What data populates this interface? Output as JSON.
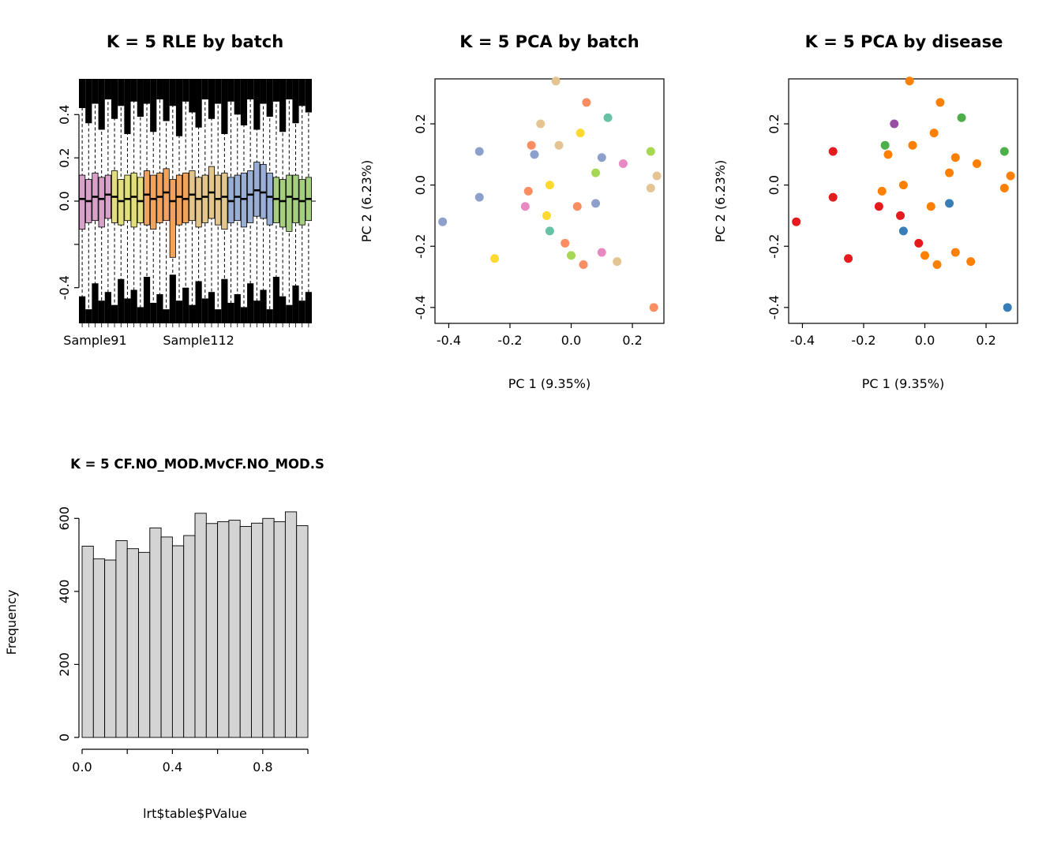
{
  "figure": {
    "background": "#ffffff",
    "text_color": "#000000"
  },
  "chart_data": [
    {
      "type": "boxplot",
      "title": "K = 5 RLE by batch",
      "xlabel": "",
      "ylabel": "",
      "ylim": [
        -0.565,
        0.565
      ],
      "y_ticks": [
        -0.4,
        -0.2,
        0.0,
        0.2,
        0.4
      ],
      "y_tick_labels": [
        "-0.4",
        "",
        "0.0",
        "0.2",
        "0.4"
      ],
      "h_line": 0,
      "whisker_style": "dashed",
      "outlier_color": "#000000",
      "x_axis_sample_labels": [
        {
          "label": "Sample91",
          "box_index": 2
        },
        {
          "label": "Sample112",
          "box_index": 18
        }
      ],
      "boxes": [
        {
          "m": 0.01,
          "q1": -0.13,
          "q3": 0.12,
          "lo": -0.5,
          "hi": 0.5,
          "ct": 0.43,
          "cb": -0.44,
          "c": "#D7A1C9"
        },
        {
          "m": 0.0,
          "q1": -0.1,
          "q3": 0.1,
          "lo": -0.52,
          "hi": 0.49,
          "ct": 0.36,
          "cb": -0.5,
          "c": "#D7A1C9"
        },
        {
          "m": 0.02,
          "q1": -0.09,
          "q3": 0.13,
          "lo": -0.49,
          "hi": 0.52,
          "ct": 0.45,
          "cb": -0.38,
          "c": "#D7A1C9"
        },
        {
          "m": 0.01,
          "q1": -0.12,
          "q3": 0.11,
          "lo": -0.51,
          "hi": 0.5,
          "ct": 0.33,
          "cb": -0.46,
          "c": "#D7A1C9"
        },
        {
          "m": 0.03,
          "q1": -0.08,
          "q3": 0.12,
          "lo": -0.5,
          "hi": 0.51,
          "ct": 0.47,
          "cb": -0.42,
          "c": "#D7A1C9"
        },
        {
          "m": 0.02,
          "q1": -0.1,
          "q3": 0.14,
          "lo": -0.52,
          "hi": 0.5,
          "ct": 0.38,
          "cb": -0.48,
          "c": "#E3DE7C"
        },
        {
          "m": 0.0,
          "q1": -0.11,
          "q3": 0.1,
          "lo": -0.5,
          "hi": 0.52,
          "ct": 0.44,
          "cb": -0.36,
          "c": "#E3DE7C"
        },
        {
          "m": 0.01,
          "q1": -0.09,
          "q3": 0.12,
          "lo": -0.51,
          "hi": 0.49,
          "ct": 0.31,
          "cb": -0.45,
          "c": "#E3DE7C"
        },
        {
          "m": 0.02,
          "q1": -0.12,
          "q3": 0.13,
          "lo": -0.49,
          "hi": 0.51,
          "ct": 0.46,
          "cb": -0.41,
          "c": "#E3DE7C"
        },
        {
          "m": 0.0,
          "q1": -0.1,
          "q3": 0.11,
          "lo": -0.52,
          "hi": 0.5,
          "ct": 0.39,
          "cb": -0.49,
          "c": "#E3DE7C"
        },
        {
          "m": 0.03,
          "q1": -0.11,
          "q3": 0.14,
          "lo": -0.5,
          "hi": 0.52,
          "ct": 0.45,
          "cb": -0.35,
          "c": "#EFA35C"
        },
        {
          "m": 0.01,
          "q1": -0.13,
          "q3": 0.12,
          "lo": -0.51,
          "hi": 0.5,
          "ct": 0.32,
          "cb": -0.47,
          "c": "#EFA35C"
        },
        {
          "m": 0.02,
          "q1": -0.1,
          "q3": 0.13,
          "lo": -0.49,
          "hi": 0.51,
          "ct": 0.47,
          "cb": -0.43,
          "c": "#EFA35C"
        },
        {
          "m": 0.04,
          "q1": -0.09,
          "q3": 0.15,
          "lo": -0.52,
          "hi": 0.52,
          "ct": 0.37,
          "cb": -0.5,
          "c": "#EFA35C"
        },
        {
          "m": 0.0,
          "q1": -0.26,
          "q3": 0.1,
          "lo": -0.51,
          "hi": 0.49,
          "ct": 0.44,
          "cb": -0.34,
          "c": "#EFA35C"
        },
        {
          "m": 0.02,
          "q1": -0.11,
          "q3": 0.12,
          "lo": -0.5,
          "hi": 0.51,
          "ct": 0.3,
          "cb": -0.46,
          "c": "#EFA35C"
        },
        {
          "m": 0.01,
          "q1": -0.1,
          "q3": 0.13,
          "lo": -0.52,
          "hi": 0.5,
          "ct": 0.46,
          "cb": -0.4,
          "c": "#EFA35C"
        },
        {
          "m": 0.03,
          "q1": -0.09,
          "q3": 0.14,
          "lo": -0.49,
          "hi": 0.52,
          "ct": 0.41,
          "cb": -0.48,
          "c": "#E2C68C"
        },
        {
          "m": 0.01,
          "q1": -0.12,
          "q3": 0.11,
          "lo": -0.51,
          "hi": 0.5,
          "ct": 0.34,
          "cb": -0.37,
          "c": "#E2C68C"
        },
        {
          "m": 0.02,
          "q1": -0.1,
          "q3": 0.12,
          "lo": -0.5,
          "hi": 0.51,
          "ct": 0.47,
          "cb": -0.45,
          "c": "#E2C68C"
        },
        {
          "m": 0.04,
          "q1": -0.08,
          "q3": 0.16,
          "lo": -0.52,
          "hi": 0.52,
          "ct": 0.38,
          "cb": -0.42,
          "c": "#E2C68C"
        },
        {
          "m": 0.01,
          "q1": -0.11,
          "q3": 0.12,
          "lo": -0.49,
          "hi": 0.5,
          "ct": 0.45,
          "cb": -0.5,
          "c": "#E2C68C"
        },
        {
          "m": 0.02,
          "q1": -0.13,
          "q3": 0.13,
          "lo": -0.51,
          "hi": 0.51,
          "ct": 0.31,
          "cb": -0.36,
          "c": "#E2C68C"
        },
        {
          "m": 0.0,
          "q1": -0.1,
          "q3": 0.11,
          "lo": -0.5,
          "hi": 0.49,
          "ct": 0.46,
          "cb": -0.47,
          "c": "#98AED6"
        },
        {
          "m": 0.02,
          "q1": -0.09,
          "q3": 0.12,
          "lo": -0.52,
          "hi": 0.52,
          "ct": 0.4,
          "cb": -0.43,
          "c": "#98AED6"
        },
        {
          "m": 0.01,
          "q1": -0.12,
          "q3": 0.13,
          "lo": -0.5,
          "hi": 0.5,
          "ct": 0.35,
          "cb": -0.49,
          "c": "#98AED6"
        },
        {
          "m": 0.03,
          "q1": -0.1,
          "q3": 0.14,
          "lo": -0.51,
          "hi": 0.51,
          "ct": 0.47,
          "cb": -0.38,
          "c": "#98AED6"
        },
        {
          "m": 0.05,
          "q1": -0.07,
          "q3": 0.18,
          "lo": -0.49,
          "hi": 0.52,
          "ct": 0.33,
          "cb": -0.46,
          "c": "#98AED6"
        },
        {
          "m": 0.04,
          "q1": -0.08,
          "q3": 0.17,
          "lo": -0.52,
          "hi": 0.5,
          "ct": 0.45,
          "cb": -0.41,
          "c": "#98AED6"
        },
        {
          "m": 0.02,
          "q1": -0.11,
          "q3": 0.13,
          "lo": -0.5,
          "hi": 0.51,
          "ct": 0.39,
          "cb": -0.5,
          "c": "#98AED6"
        },
        {
          "m": 0.01,
          "q1": -0.1,
          "q3": 0.11,
          "lo": -0.51,
          "hi": 0.49,
          "ct": 0.46,
          "cb": -0.35,
          "c": "#A5CE80"
        },
        {
          "m": 0.0,
          "q1": -0.12,
          "q3": 0.1,
          "lo": -0.49,
          "hi": 0.52,
          "ct": 0.32,
          "cb": -0.44,
          "c": "#A5CE80"
        },
        {
          "m": 0.02,
          "q1": -0.14,
          "q3": 0.12,
          "lo": -0.52,
          "hi": 0.5,
          "ct": 0.47,
          "cb": -0.48,
          "c": "#A5CE80"
        },
        {
          "m": 0.01,
          "q1": -0.1,
          "q3": 0.12,
          "lo": -0.5,
          "hi": 0.51,
          "ct": 0.36,
          "cb": -0.39,
          "c": "#A5CE80"
        },
        {
          "m": 0.0,
          "q1": -0.11,
          "q3": 0.1,
          "lo": -0.51,
          "hi": 0.5,
          "ct": 0.44,
          "cb": -0.46,
          "c": "#A5CE80"
        },
        {
          "m": 0.01,
          "q1": -0.09,
          "q3": 0.11,
          "lo": -0.5,
          "hi": 0.52,
          "ct": 0.41,
          "cb": -0.42,
          "c": "#A5CE80"
        }
      ]
    },
    {
      "type": "scatter",
      "title": "K = 5 PCA by batch",
      "xlabel": "PC 1 (9.35%)",
      "ylabel": "PC 2 (6.23%)",
      "xlim": [
        -0.445,
        0.303
      ],
      "ylim": [
        -0.452,
        0.347
      ],
      "x_ticks": [
        -0.4,
        -0.2,
        0.0,
        0.2
      ],
      "x_tick_labels": [
        "-0.4",
        "-0.2",
        "0.0",
        "0.2"
      ],
      "y_ticks": [
        -0.4,
        -0.2,
        0.0,
        0.2
      ],
      "y_tick_labels": [
        "-0.4",
        "-0.2",
        "0.0",
        "0.2"
      ],
      "point_radius": 5.5,
      "points": [
        {
          "x": -0.05,
          "y": 0.34,
          "color": "#E5C494"
        },
        {
          "x": 0.05,
          "y": 0.27,
          "color": "#FC8D62"
        },
        {
          "x": 0.12,
          "y": 0.22,
          "color": "#66C2A5"
        },
        {
          "x": -0.1,
          "y": 0.2,
          "color": "#E5C494"
        },
        {
          "x": -0.3,
          "y": 0.11,
          "color": "#8DA0CB"
        },
        {
          "x": -0.13,
          "y": 0.13,
          "color": "#FC8D62"
        },
        {
          "x": -0.12,
          "y": 0.1,
          "color": "#8DA0CB"
        },
        {
          "x": -0.04,
          "y": 0.13,
          "color": "#E5C494"
        },
        {
          "x": 0.03,
          "y": 0.17,
          "color": "#FFD92F"
        },
        {
          "x": 0.1,
          "y": 0.09,
          "color": "#8DA0CB"
        },
        {
          "x": 0.17,
          "y": 0.07,
          "color": "#E78AC3"
        },
        {
          "x": 0.26,
          "y": 0.11,
          "color": "#A6D854"
        },
        {
          "x": 0.08,
          "y": 0.04,
          "color": "#A6D854"
        },
        {
          "x": 0.28,
          "y": 0.03,
          "color": "#E5C494"
        },
        {
          "x": 0.26,
          "y": -0.01,
          "color": "#E5C494"
        },
        {
          "x": -0.14,
          "y": -0.02,
          "color": "#FC8D62"
        },
        {
          "x": -0.07,
          "y": 0.0,
          "color": "#FFD92F"
        },
        {
          "x": -0.3,
          "y": -0.04,
          "color": "#8DA0CB"
        },
        {
          "x": -0.15,
          "y": -0.07,
          "color": "#E78AC3"
        },
        {
          "x": -0.08,
          "y": -0.1,
          "color": "#FFD92F"
        },
        {
          "x": 0.02,
          "y": -0.07,
          "color": "#FC8D62"
        },
        {
          "x": 0.08,
          "y": -0.06,
          "color": "#8DA0CB"
        },
        {
          "x": -0.42,
          "y": -0.12,
          "color": "#8DA0CB"
        },
        {
          "x": -0.07,
          "y": -0.15,
          "color": "#66C2A5"
        },
        {
          "x": -0.02,
          "y": -0.19,
          "color": "#FC8D62"
        },
        {
          "x": 0.0,
          "y": -0.23,
          "color": "#A6D854"
        },
        {
          "x": 0.1,
          "y": -0.22,
          "color": "#E78AC3"
        },
        {
          "x": -0.25,
          "y": -0.24,
          "color": "#FFD92F"
        },
        {
          "x": 0.04,
          "y": -0.26,
          "color": "#FC8D62"
        },
        {
          "x": 0.15,
          "y": -0.25,
          "color": "#E5C494"
        },
        {
          "x": 0.27,
          "y": -0.4,
          "color": "#FC8D62"
        }
      ]
    },
    {
      "type": "scatter",
      "title": "K = 5 PCA by disease",
      "xlabel": "PC 1 (9.35%)",
      "ylabel": "PC 2 (6.23%)",
      "xlim": [
        -0.445,
        0.303
      ],
      "ylim": [
        -0.452,
        0.347
      ],
      "x_ticks": [
        -0.4,
        -0.2,
        0.0,
        0.2
      ],
      "x_tick_labels": [
        "-0.4",
        "-0.2",
        "0.0",
        "0.2"
      ],
      "y_ticks": [
        -0.4,
        -0.2,
        0.0,
        0.2
      ],
      "y_tick_labels": [
        "-0.4",
        "-0.2",
        "0.0",
        "0.2"
      ],
      "point_radius": 5.5,
      "points": [
        {
          "x": -0.05,
          "y": 0.34,
          "color": "#FF7F00"
        },
        {
          "x": 0.05,
          "y": 0.27,
          "color": "#FF7F00"
        },
        {
          "x": 0.12,
          "y": 0.22,
          "color": "#4DAF4A"
        },
        {
          "x": -0.1,
          "y": 0.2,
          "color": "#984EA3"
        },
        {
          "x": -0.3,
          "y": 0.11,
          "color": "#E41A1C"
        },
        {
          "x": -0.13,
          "y": 0.13,
          "color": "#4DAF4A"
        },
        {
          "x": -0.12,
          "y": 0.1,
          "color": "#FF7F00"
        },
        {
          "x": -0.04,
          "y": 0.13,
          "color": "#FF7F00"
        },
        {
          "x": 0.03,
          "y": 0.17,
          "color": "#FF7F00"
        },
        {
          "x": 0.1,
          "y": 0.09,
          "color": "#FF7F00"
        },
        {
          "x": 0.17,
          "y": 0.07,
          "color": "#FF7F00"
        },
        {
          "x": 0.26,
          "y": 0.11,
          "color": "#4DAF4A"
        },
        {
          "x": 0.08,
          "y": 0.04,
          "color": "#FF7F00"
        },
        {
          "x": 0.28,
          "y": 0.03,
          "color": "#FF7F00"
        },
        {
          "x": 0.26,
          "y": -0.01,
          "color": "#FF7F00"
        },
        {
          "x": -0.14,
          "y": -0.02,
          "color": "#FF7F00"
        },
        {
          "x": -0.07,
          "y": 0.0,
          "color": "#FF7F00"
        },
        {
          "x": -0.3,
          "y": -0.04,
          "color": "#E41A1C"
        },
        {
          "x": -0.15,
          "y": -0.07,
          "color": "#E41A1C"
        },
        {
          "x": -0.08,
          "y": -0.1,
          "color": "#E41A1C"
        },
        {
          "x": 0.02,
          "y": -0.07,
          "color": "#FF7F00"
        },
        {
          "x": 0.08,
          "y": -0.06,
          "color": "#377EB8"
        },
        {
          "x": -0.42,
          "y": -0.12,
          "color": "#E41A1C"
        },
        {
          "x": -0.07,
          "y": -0.15,
          "color": "#377EB8"
        },
        {
          "x": -0.02,
          "y": -0.19,
          "color": "#E41A1C"
        },
        {
          "x": 0.0,
          "y": -0.23,
          "color": "#FF7F00"
        },
        {
          "x": 0.1,
          "y": -0.22,
          "color": "#FF7F00"
        },
        {
          "x": -0.25,
          "y": -0.24,
          "color": "#E41A1C"
        },
        {
          "x": 0.04,
          "y": -0.26,
          "color": "#FF7F00"
        },
        {
          "x": 0.15,
          "y": -0.25,
          "color": "#FF7F00"
        },
        {
          "x": 0.27,
          "y": -0.4,
          "color": "#377EB8"
        }
      ]
    },
    {
      "type": "histogram",
      "title": "K = 5 CF.NO_MOD.MvCF.NO_MOD.S",
      "xlabel": "lrt$table$PValue",
      "ylabel": "Frequency",
      "xlim": [
        0,
        1
      ],
      "ylim": [
        0,
        633
      ],
      "x_ticks": [
        0,
        0.2,
        0.4,
        0.6,
        0.8,
        1.0
      ],
      "x_tick_labels": [
        "0.0",
        "",
        "0.4",
        "",
        "0.8",
        ""
      ],
      "y_ticks": [
        0,
        200,
        400,
        600
      ],
      "y_tick_labels": [
        "0",
        "200",
        "400",
        "600"
      ],
      "bin_width": 0.05,
      "bar_fill": "#D4D4D4",
      "bar_stroke": "#000000",
      "counts": [
        524,
        489,
        486,
        539,
        517,
        507,
        574,
        549,
        525,
        553,
        614,
        586,
        591,
        595,
        578,
        587,
        600,
        591,
        618,
        580
      ]
    }
  ]
}
